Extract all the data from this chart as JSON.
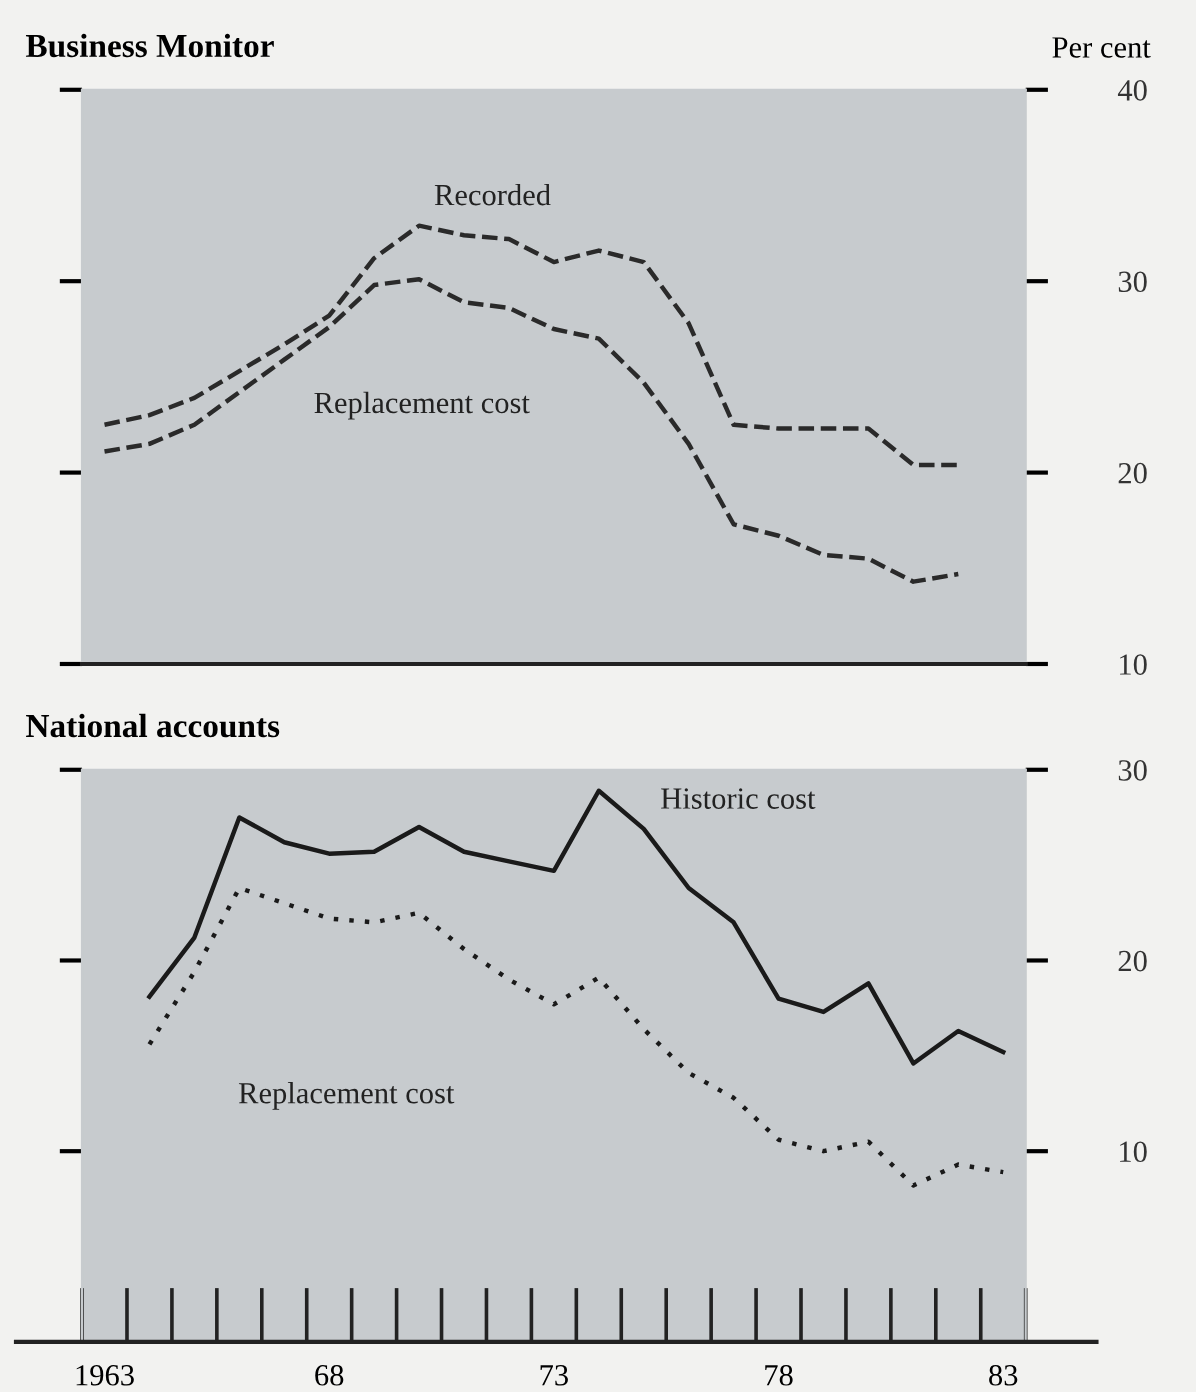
{
  "chart_data": [
    {
      "type": "line",
      "title": "Business Monitor",
      "ylabel": "Per cent",
      "tick_labels": "y",
      "xlim": [
        1962.5,
        1983.5
      ],
      "ylim": [
        10,
        40
      ],
      "yticks": [
        10,
        20,
        30,
        40
      ],
      "x": [
        1963,
        1964,
        1965,
        1966,
        1967,
        1968,
        1969,
        1970,
        1971,
        1972,
        1973,
        1974,
        1975,
        1976,
        1977,
        1978,
        1979,
        1980,
        1981,
        1982
      ],
      "series": [
        {
          "color": "#2a2a2a",
          "line_style": "dashed",
          "values": [
            22.5,
            23.0,
            23.9,
            25.3,
            26.7,
            28.2,
            31.2,
            32.9,
            32.4,
            32.2,
            31.0,
            31.6,
            31.0,
            27.8,
            22.5,
            22.3,
            22.3,
            22.3,
            20.4,
            20.4
          ]
        },
        {
          "color": "#2a2a2a",
          "line_style": "dashed",
          "values": [
            21.1,
            21.5,
            22.5,
            24.2,
            25.9,
            27.6,
            29.8,
            30.1,
            28.9,
            28.6,
            27.5,
            27.0,
            24.7,
            21.5,
            17.3,
            16.7,
            15.7,
            15.5,
            14.3,
            14.7
          ]
        }
      ],
      "annotations": [
        "Recorded",
        "Replacement cost"
      ]
    },
    {
      "type": "line",
      "title": "National accounts",
      "xlim": [
        1962.5,
        1983.5
      ],
      "ylim": [
        0,
        30
      ],
      "yticks": [
        10,
        20,
        30
      ],
      "xticks": [
        {
          "value": 1963,
          "label": "1963"
        },
        {
          "value": 1968,
          "label": "68"
        },
        {
          "value": 1973,
          "label": "73"
        },
        {
          "value": 1978,
          "label": "78"
        },
        {
          "value": 1983,
          "label": "83"
        }
      ],
      "x": [
        1964,
        1965,
        1966,
        1967,
        1968,
        1969,
        1970,
        1971,
        1972,
        1973,
        1974,
        1975,
        1976,
        1977,
        1978,
        1979,
        1980,
        1981,
        1982,
        1983
      ],
      "series": [
        {
          "color": "#1a1a1a",
          "line_style": "solid",
          "values": [
            18.1,
            21.2,
            27.5,
            26.2,
            25.6,
            25.7,
            27.0,
            25.7,
            25.2,
            24.7,
            28.9,
            26.9,
            23.8,
            22.0,
            18.0,
            17.3,
            18.8,
            14.6,
            16.3,
            15.2
          ]
        },
        {
          "color": "#1a1a1a",
          "line_style": "dotted",
          "values": [
            15.6,
            19.4,
            23.8,
            23.0,
            22.2,
            22.0,
            22.5,
            20.6,
            19.0,
            17.7,
            19.1,
            16.4,
            14.1,
            12.8,
            10.6,
            10.0,
            10.5,
            8.2,
            9.3,
            8.9
          ]
        }
      ],
      "annotations": [
        "Historic cost",
        "Replacement cost"
      ]
    }
  ]
}
